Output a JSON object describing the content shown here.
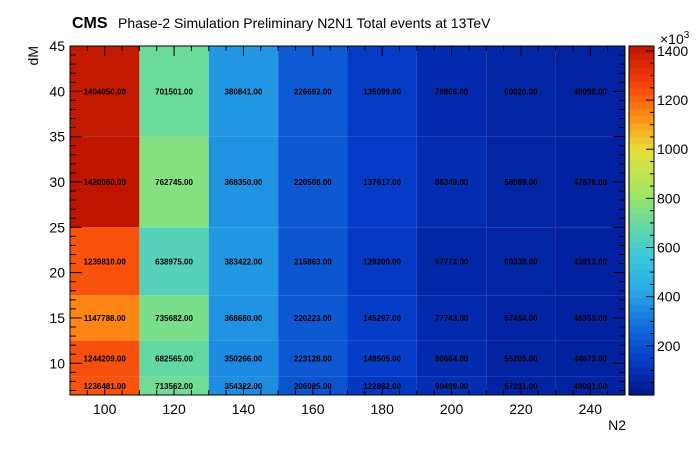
{
  "chart_data": {
    "type": "heatmap",
    "title_cms": "CMS",
    "title_rest": "Phase-2 Simulation Preliminary   N2N1 Total events at 13TeV",
    "xlabel": "N2",
    "ylabel": "dM",
    "x_ticks": [
      "100",
      "120",
      "140",
      "160",
      "180",
      "200",
      "220",
      "240"
    ],
    "y_ticks": [
      "10",
      "15",
      "20",
      "25",
      "30",
      "35",
      "40",
      "45"
    ],
    "xlim": [
      90,
      250
    ],
    "ylim": [
      6.5,
      45
    ],
    "x_edges": [
      90,
      110,
      130,
      150,
      170,
      190,
      210,
      230,
      250
    ],
    "z_ticks": [
      "200",
      "400",
      "600",
      "800",
      "1000",
      "1200",
      "1400"
    ],
    "z_exponent_base": "×10",
    "z_exponent_power": "3",
    "zlim": [
      0,
      1420050
    ],
    "rows": [
      {
        "y0": 6.5,
        "y1": 8.5,
        "values": [
          1236481,
          713562,
          354322,
          206025,
          122832,
          90499,
          57231,
          49031
        ],
        "labels": [
          "1236481.00",
          "713562.00",
          "354322.00",
          "206025.00",
          "122832.00",
          "90499.00",
          "57231.00",
          "49031.00"
        ]
      },
      {
        "y0": 8.5,
        "y1": 12.5,
        "values": [
          1244209,
          682565,
          350266,
          223128,
          148505,
          80664,
          55205,
          44673
        ],
        "labels": [
          "1244209.00",
          "682565.00",
          "350266.00",
          "223128.00",
          "148505.00",
          "80664.00",
          "55205.00",
          "44673.00"
        ]
      },
      {
        "y0": 12.5,
        "y1": 17.5,
        "values": [
          1147788,
          735682,
          368680,
          220223,
          145297,
          77743,
          57454,
          46353
        ],
        "labels": [
          "1147788.00",
          "735682.00",
          "368680.00",
          "220223.00",
          "145297.00",
          "77743.00",
          "57454.00",
          "46353.00"
        ]
      },
      {
        "y0": 17.5,
        "y1": 25,
        "values": [
          1239810,
          638975,
          383422,
          215863,
          129200,
          67773,
          60339,
          43913
        ],
        "labels": [
          "1239810.00",
          "638975.00",
          "383422.00",
          "215863.00",
          "129200.00",
          "67773.00",
          "60339.00",
          "43913.00"
        ]
      },
      {
        "y0": 25,
        "y1": 35,
        "values": [
          1420050,
          762745,
          368350,
          220508,
          137617,
          88349,
          58969,
          47876
        ],
        "labels": [
          "1420050.00",
          "762745.00",
          "368350.00",
          "220508.00",
          "137617.00",
          "88349.00",
          "58969.00",
          "47876.00"
        ]
      },
      {
        "y0": 35,
        "y1": 45,
        "values": [
          1404050,
          701501,
          380841,
          226692,
          135099,
          79866,
          60020,
          49098
        ],
        "labels": [
          "1404050.00",
          "701501.00",
          "380841.00",
          "226692.00",
          "135099.00",
          "79866.00",
          "60020.00",
          "49098.00"
        ]
      }
    ],
    "colormap": "rainbow",
    "grid": false,
    "legend": "colorbar-right"
  }
}
